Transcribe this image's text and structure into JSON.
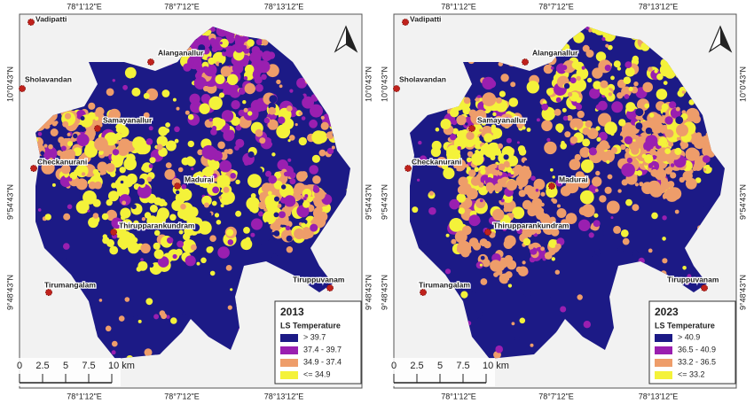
{
  "longitude_labels": [
    "78°1'12\"E",
    "78°7'12\"E",
    "78°13'12\"E"
  ],
  "latitude_labels": [
    "10°0'43\"N",
    "9°54'43\"N",
    "9°48'43\"N"
  ],
  "places": [
    "Vadipatti",
    "Alanganallur",
    "Sholavandan",
    "Samayanallur",
    "Checkanurani",
    "Madurai",
    "Thirupparankundram",
    "Tirumangalam",
    "Tiruppuvanam"
  ],
  "scale_labels": [
    "0",
    "2.5",
    "5",
    "7.5",
    "10 km"
  ],
  "panels": [
    {
      "year": "2013",
      "legend_title": "LS Temperature",
      "legend": [
        {
          "label": "> 39.7",
          "color": "#1c1a86"
        },
        {
          "label": "37.4 - 39.7",
          "color": "#9a1fb0"
        },
        {
          "label": "34.9 - 37.4",
          "color": "#ee9d6a"
        },
        {
          "label": "<= 34.9",
          "color": "#f4f23a"
        }
      ]
    },
    {
      "year": "2023",
      "legend_title": "LS Temperature",
      "legend": [
        {
          "label": "> 40.9",
          "color": "#1c1a86"
        },
        {
          "label": "36.5 - 40.9",
          "color": "#9a1fb0"
        },
        {
          "label": "33.2 - 36.5",
          "color": "#ee9d6a"
        },
        {
          "label": "<= 33.2",
          "color": "#f4f23a"
        }
      ]
    }
  ]
}
